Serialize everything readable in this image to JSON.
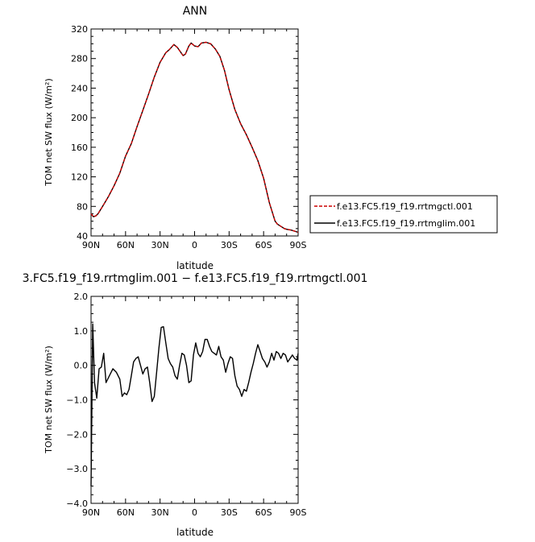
{
  "chart_data": [
    {
      "type": "line",
      "title": "ANN",
      "xlabel": "latitude",
      "ylabel": "TOM net SW flux (W/m²)",
      "xlim": [
        90,
        -90
      ],
      "ylim": [
        40,
        320
      ],
      "xticks": [
        90,
        60,
        30,
        0,
        -30,
        -60,
        -90
      ],
      "xtick_labels": [
        "90N",
        "60N",
        "30N",
        "0",
        "30S",
        "60S",
        "90S"
      ],
      "yticks": [
        40,
        80,
        120,
        160,
        200,
        240,
        280,
        320
      ],
      "ytick_labels": [
        "40",
        "80",
        "120",
        "160",
        "200",
        "240",
        "280",
        "320"
      ],
      "legend": "right",
      "series": [
        {
          "name": "f.e13.FC5.f19_f19.rrtmgctl.001",
          "color": "#cc0000",
          "dash": "dashed",
          "x": [
            90,
            88,
            86,
            84,
            80,
            75,
            70,
            65,
            60,
            55,
            50,
            45,
            40,
            35,
            30,
            25,
            22,
            18,
            15,
            10,
            8,
            5,
            3,
            0,
            -3,
            -6,
            -10,
            -14,
            -18,
            -22,
            -26,
            -30,
            -35,
            -40,
            -45,
            -50,
            -55,
            -60,
            -65,
            -70,
            -72,
            -75,
            -78,
            -80,
            -84,
            -88,
            -90
          ],
          "y": [
            70,
            66,
            67,
            70,
            80,
            93,
            108,
            125,
            148,
            165,
            188,
            210,
            232,
            255,
            275,
            288,
            292,
            299,
            295,
            284,
            286,
            297,
            301,
            297,
            296,
            301,
            302,
            300,
            293,
            283,
            264,
            238,
            211,
            192,
            177,
            160,
            142,
            118,
            85,
            60,
            56,
            53,
            50,
            49,
            48,
            46,
            45
          ]
        },
        {
          "name": "f.e13.FC5.f19_f19.rrtmglim.001",
          "color": "#000000",
          "dash": "solid",
          "x": [
            90,
            88,
            86,
            84,
            80,
            75,
            70,
            65,
            60,
            55,
            50,
            45,
            40,
            35,
            30,
            25,
            22,
            18,
            15,
            10,
            8,
            5,
            3,
            0,
            -3,
            -6,
            -10,
            -14,
            -18,
            -22,
            -26,
            -30,
            -35,
            -40,
            -45,
            -50,
            -55,
            -60,
            -65,
            -70,
            -72,
            -75,
            -78,
            -80,
            -84,
            -88,
            -90
          ],
          "y": [
            70,
            66,
            67,
            70,
            80,
            93,
            108,
            125,
            148,
            165,
            188,
            210,
            232,
            255,
            275,
            288,
            292,
            299,
            295,
            284,
            286,
            297,
            301,
            297,
            296,
            301,
            302,
            300,
            293,
            283,
            264,
            238,
            211,
            192,
            177,
            160,
            142,
            118,
            85,
            60,
            56,
            53,
            50,
            49,
            48,
            46,
            45
          ]
        }
      ]
    },
    {
      "type": "line",
      "title": "3.FC5.f19_f19.rrtmglim.001 − f.e13.FC5.f19_f19.rrtmgctl.001",
      "xlabel": "latitude",
      "ylabel": "TOM net SW flux (W/m²)",
      "xlim": [
        90,
        -90
      ],
      "ylim": [
        -4.0,
        2.0
      ],
      "xticks": [
        90,
        60,
        30,
        0,
        -30,
        -60,
        -90
      ],
      "xtick_labels": [
        "90N",
        "60N",
        "30N",
        "0",
        "30S",
        "60S",
        "90S"
      ],
      "yticks": [
        -4,
        -3,
        -2,
        -1,
        0,
        1,
        2
      ],
      "ytick_labels": [
        "−4.0",
        "−3.0",
        "−2.0",
        "−1.0",
        "0.0",
        "1.0",
        "2.0"
      ],
      "series": [
        {
          "color": "#000000",
          "dash": "solid",
          "x": [
            90,
            88.5,
            87,
            85,
            83,
            81,
            79,
            77,
            74,
            71,
            68,
            65,
            63,
            61,
            59,
            57,
            55,
            53,
            51,
            49,
            47,
            45,
            43,
            41,
            39,
            37,
            35,
            33,
            31,
            29,
            27,
            25,
            23,
            21,
            19,
            17,
            15,
            13,
            11,
            9,
            7,
            5,
            3,
            1,
            -1,
            -3,
            -5,
            -7,
            -9,
            -11,
            -13,
            -15,
            -17,
            -19,
            -21,
            -23,
            -25,
            -27,
            -29,
            -31,
            -33,
            -35,
            -37,
            -39,
            -41,
            -43,
            -45,
            -47,
            -49,
            -51,
            -53,
            -55,
            -57,
            -59,
            -61,
            -63,
            -65,
            -67,
            -69,
            -71,
            -73,
            -75,
            -77,
            -79,
            -81,
            -83,
            -85,
            -87,
            -89,
            -90
          ],
          "y": [
            -3.5,
            1.2,
            -0.5,
            -0.95,
            -0.1,
            -0.05,
            0.35,
            -0.5,
            -0.3,
            -0.1,
            -0.2,
            -0.4,
            -0.9,
            -0.8,
            -0.85,
            -0.7,
            -0.3,
            0.1,
            0.2,
            0.25,
            0.0,
            -0.25,
            -0.1,
            -0.05,
            -0.5,
            -1.05,
            -0.9,
            -0.2,
            0.5,
            1.1,
            1.12,
            0.65,
            0.2,
            0.05,
            -0.05,
            -0.3,
            -0.4,
            0.0,
            0.35,
            0.3,
            0.0,
            -0.5,
            -0.45,
            0.3,
            0.65,
            0.35,
            0.25,
            0.4,
            0.75,
            0.75,
            0.55,
            0.4,
            0.35,
            0.3,
            0.55,
            0.25,
            0.15,
            -0.2,
            0.05,
            0.25,
            0.2,
            -0.3,
            -0.6,
            -0.7,
            -0.9,
            -0.7,
            -0.75,
            -0.5,
            -0.2,
            0.05,
            0.35,
            0.6,
            0.4,
            0.2,
            0.1,
            -0.05,
            0.1,
            0.35,
            0.15,
            0.4,
            0.35,
            0.2,
            0.35,
            0.3,
            0.1,
            0.2,
            0.3,
            0.2,
            0.15,
            0.35
          ]
        }
      ]
    }
  ]
}
